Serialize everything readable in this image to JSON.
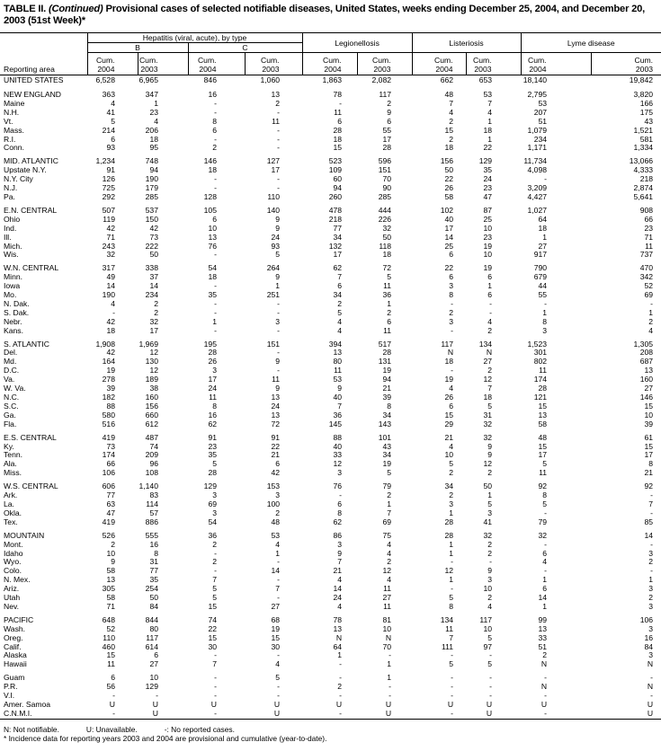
{
  "title": {
    "prefix": "TABLE II. ",
    "italic": "(Continued)",
    "rest": " Provisional cases of selected notifiable diseases, United States, weeks ending December 25, 2004, and December 20, 2003 (51st Week)*"
  },
  "header": {
    "reporting_area": "Reporting area",
    "hepatitis": "Hepatitis (viral, acute), by type",
    "b": "B",
    "c": "C",
    "legionellosis": "Legionellosis",
    "listeriosis": "Listeriosis",
    "lyme": "Lyme disease",
    "cum": [
      "Cum.",
      "Cum.",
      "Cum.",
      "Cum.",
      "Cum.",
      "Cum.",
      "Cum.",
      "Cum.",
      "Cum.",
      "Cum."
    ],
    "years": [
      "2004",
      "2003",
      "2004",
      "2003",
      "2004",
      "2003",
      "2004",
      "2003",
      "2004",
      "2003"
    ]
  },
  "groups": [
    [
      [
        "UNITED STATES",
        "6,528",
        "6,965",
        "846",
        "1,060",
        "1,863",
        "2,082",
        "662",
        "653",
        "18,140",
        "19,842"
      ]
    ],
    [
      [
        "NEW ENGLAND",
        "363",
        "347",
        "16",
        "13",
        "78",
        "117",
        "48",
        "53",
        "2,795",
        "3,820"
      ],
      [
        "Maine",
        "4",
        "1",
        "-",
        "2",
        "-",
        "2",
        "7",
        "7",
        "53",
        "166"
      ],
      [
        "N.H.",
        "41",
        "23",
        "-",
        "-",
        "11",
        "9",
        "4",
        "4",
        "207",
        "175"
      ],
      [
        "Vt.",
        "5",
        "4",
        "8",
        "11",
        "6",
        "6",
        "2",
        "1",
        "51",
        "43"
      ],
      [
        "Mass.",
        "214",
        "206",
        "6",
        "-",
        "28",
        "55",
        "15",
        "18",
        "1,079",
        "1,521"
      ],
      [
        "R.I.",
        "6",
        "18",
        "-",
        "-",
        "18",
        "17",
        "2",
        "1",
        "234",
        "581"
      ],
      [
        "Conn.",
        "93",
        "95",
        "2",
        "-",
        "15",
        "28",
        "18",
        "22",
        "1,171",
        "1,334"
      ]
    ],
    [
      [
        "MID. ATLANTIC",
        "1,234",
        "748",
        "146",
        "127",
        "523",
        "596",
        "156",
        "129",
        "11,734",
        "13,066"
      ],
      [
        "Upstate N.Y.",
        "91",
        "94",
        "18",
        "17",
        "109",
        "151",
        "50",
        "35",
        "4,098",
        "4,333"
      ],
      [
        "N.Y. City",
        "126",
        "190",
        "-",
        "-",
        "60",
        "70",
        "22",
        "24",
        "-",
        "218"
      ],
      [
        "N.J.",
        "725",
        "179",
        "-",
        "-",
        "94",
        "90",
        "26",
        "23",
        "3,209",
        "2,874"
      ],
      [
        "Pa.",
        "292",
        "285",
        "128",
        "110",
        "260",
        "285",
        "58",
        "47",
        "4,427",
        "5,641"
      ]
    ],
    [
      [
        "E.N. CENTRAL",
        "507",
        "537",
        "105",
        "140",
        "478",
        "444",
        "102",
        "87",
        "1,027",
        "908"
      ],
      [
        "Ohio",
        "119",
        "150",
        "6",
        "9",
        "218",
        "226",
        "40",
        "25",
        "64",
        "66"
      ],
      [
        "Ind.",
        "42",
        "42",
        "10",
        "9",
        "77",
        "32",
        "17",
        "10",
        "18",
        "23"
      ],
      [
        "Ill.",
        "71",
        "73",
        "13",
        "24",
        "34",
        "50",
        "14",
        "23",
        "1",
        "71"
      ],
      [
        "Mich.",
        "243",
        "222",
        "76",
        "93",
        "132",
        "118",
        "25",
        "19",
        "27",
        "11"
      ],
      [
        "Wis.",
        "32",
        "50",
        "-",
        "5",
        "17",
        "18",
        "6",
        "10",
        "917",
        "737"
      ]
    ],
    [
      [
        "W.N. CENTRAL",
        "317",
        "338",
        "54",
        "264",
        "62",
        "72",
        "22",
        "19",
        "790",
        "470"
      ],
      [
        "Minn.",
        "49",
        "37",
        "18",
        "9",
        "7",
        "5",
        "6",
        "6",
        "679",
        "342"
      ],
      [
        "Iowa",
        "14",
        "14",
        "-",
        "1",
        "6",
        "11",
        "3",
        "1",
        "44",
        "52"
      ],
      [
        "Mo.",
        "190",
        "234",
        "35",
        "251",
        "34",
        "36",
        "8",
        "6",
        "55",
        "69"
      ],
      [
        "N. Dak.",
        "4",
        "2",
        "-",
        "-",
        "2",
        "1",
        "-",
        "-",
        "-",
        "-"
      ],
      [
        "S. Dak.",
        "-",
        "2",
        "-",
        "-",
        "5",
        "2",
        "2",
        "-",
        "1",
        "1"
      ],
      [
        "Nebr.",
        "42",
        "32",
        "1",
        "3",
        "4",
        "6",
        "3",
        "4",
        "8",
        "2"
      ],
      [
        "Kans.",
        "18",
        "17",
        "-",
        "-",
        "4",
        "11",
        "-",
        "2",
        "3",
        "4"
      ]
    ],
    [
      [
        "S. ATLANTIC",
        "1,908",
        "1,969",
        "195",
        "151",
        "394",
        "517",
        "117",
        "134",
        "1,523",
        "1,305"
      ],
      [
        "Del.",
        "42",
        "12",
        "28",
        "-",
        "13",
        "28",
        "N",
        "N",
        "301",
        "208"
      ],
      [
        "Md.",
        "164",
        "130",
        "26",
        "9",
        "80",
        "131",
        "18",
        "27",
        "802",
        "687"
      ],
      [
        "D.C.",
        "19",
        "12",
        "3",
        "-",
        "11",
        "19",
        "-",
        "2",
        "11",
        "13"
      ],
      [
        "Va.",
        "278",
        "189",
        "17",
        "11",
        "53",
        "94",
        "19",
        "12",
        "174",
        "160"
      ],
      [
        "W. Va.",
        "39",
        "38",
        "24",
        "9",
        "9",
        "21",
        "4",
        "7",
        "28",
        "27"
      ],
      [
        "N.C.",
        "182",
        "160",
        "11",
        "13",
        "40",
        "39",
        "26",
        "18",
        "121",
        "146"
      ],
      [
        "S.C.",
        "88",
        "156",
        "8",
        "24",
        "7",
        "8",
        "6",
        "5",
        "15",
        "15"
      ],
      [
        "Ga.",
        "580",
        "660",
        "16",
        "13",
        "36",
        "34",
        "15",
        "31",
        "13",
        "10"
      ],
      [
        "Fla.",
        "516",
        "612",
        "62",
        "72",
        "145",
        "143",
        "29",
        "32",
        "58",
        "39"
      ]
    ],
    [
      [
        "E.S. CENTRAL",
        "419",
        "487",
        "91",
        "91",
        "88",
        "101",
        "21",
        "32",
        "48",
        "61"
      ],
      [
        "Ky.",
        "73",
        "74",
        "23",
        "22",
        "40",
        "43",
        "4",
        "9",
        "15",
        "15"
      ],
      [
        "Tenn.",
        "174",
        "209",
        "35",
        "21",
        "33",
        "34",
        "10",
        "9",
        "17",
        "17"
      ],
      [
        "Ala.",
        "66",
        "96",
        "5",
        "6",
        "12",
        "19",
        "5",
        "12",
        "5",
        "8"
      ],
      [
        "Miss.",
        "106",
        "108",
        "28",
        "42",
        "3",
        "5",
        "2",
        "2",
        "11",
        "21"
      ]
    ],
    [
      [
        "W.S. CENTRAL",
        "606",
        "1,140",
        "129",
        "153",
        "76",
        "79",
        "34",
        "50",
        "92",
        "92"
      ],
      [
        "Ark.",
        "77",
        "83",
        "3",
        "3",
        "-",
        "2",
        "2",
        "1",
        "8",
        "-"
      ],
      [
        "La.",
        "63",
        "114",
        "69",
        "100",
        "6",
        "1",
        "3",
        "5",
        "5",
        "7"
      ],
      [
        "Okla.",
        "47",
        "57",
        "3",
        "2",
        "8",
        "7",
        "1",
        "3",
        "-",
        "-"
      ],
      [
        "Tex.",
        "419",
        "886",
        "54",
        "48",
        "62",
        "69",
        "28",
        "41",
        "79",
        "85"
      ]
    ],
    [
      [
        "MOUNTAIN",
        "526",
        "555",
        "36",
        "53",
        "86",
        "75",
        "28",
        "32",
        "32",
        "14"
      ],
      [
        "Mont.",
        "2",
        "16",
        "2",
        "4",
        "3",
        "4",
        "1",
        "2",
        "-",
        "-"
      ],
      [
        "Idaho",
        "10",
        "8",
        "-",
        "1",
        "9",
        "4",
        "1",
        "2",
        "6",
        "3"
      ],
      [
        "Wyo.",
        "9",
        "31",
        "2",
        "-",
        "7",
        "2",
        "-",
        "-",
        "4",
        "2"
      ],
      [
        "Colo.",
        "58",
        "77",
        "-",
        "14",
        "21",
        "12",
        "12",
        "9",
        "-",
        "-"
      ],
      [
        "N. Mex.",
        "13",
        "35",
        "7",
        "-",
        "4",
        "4",
        "1",
        "3",
        "1",
        "1"
      ],
      [
        "Ariz.",
        "305",
        "254",
        "5",
        "7",
        "14",
        "11",
        "-",
        "10",
        "6",
        "3"
      ],
      [
        "Utah",
        "58",
        "50",
        "5",
        "-",
        "24",
        "27",
        "5",
        "2",
        "14",
        "2"
      ],
      [
        "Nev.",
        "71",
        "84",
        "15",
        "27",
        "4",
        "11",
        "8",
        "4",
        "1",
        "3"
      ]
    ],
    [
      [
        "PACIFIC",
        "648",
        "844",
        "74",
        "68",
        "78",
        "81",
        "134",
        "117",
        "99",
        "106"
      ],
      [
        "Wash.",
        "52",
        "80",
        "22",
        "19",
        "13",
        "10",
        "11",
        "10",
        "13",
        "3"
      ],
      [
        "Oreg.",
        "110",
        "117",
        "15",
        "15",
        "N",
        "N",
        "7",
        "5",
        "33",
        "16"
      ],
      [
        "Calif.",
        "460",
        "614",
        "30",
        "30",
        "64",
        "70",
        "111",
        "97",
        "51",
        "84"
      ],
      [
        "Alaska",
        "15",
        "6",
        "-",
        "-",
        "1",
        "-",
        "-",
        "-",
        "2",
        "3"
      ],
      [
        "Hawaii",
        "11",
        "27",
        "7",
        "4",
        "-",
        "1",
        "5",
        "5",
        "N",
        "N"
      ]
    ],
    [
      [
        "Guam",
        "6",
        "10",
        "-",
        "5",
        "-",
        "1",
        "-",
        "-",
        "-",
        "-"
      ],
      [
        "P.R.",
        "56",
        "129",
        "-",
        "-",
        "2",
        "-",
        "-",
        "-",
        "N",
        "N"
      ],
      [
        "V.I.",
        "-",
        "-",
        "-",
        "-",
        "-",
        "-",
        "-",
        "-",
        "-",
        "-"
      ],
      [
        "Amer. Samoa",
        "U",
        "U",
        "U",
        "U",
        "U",
        "U",
        "U",
        "U",
        "U",
        "U"
      ],
      [
        "C.N.M.I.",
        "-",
        "U",
        "-",
        "U",
        "-",
        "U",
        "-",
        "U",
        "-",
        "U"
      ]
    ]
  ],
  "footnotes": {
    "n": "N: Not notifiable.",
    "u": "U: Unavailable.",
    "dash": "-: No reported cases.",
    "star": "* Incidence data for reporting years 2003 and 2004 are provisional and cumulative (year-to-date)."
  }
}
